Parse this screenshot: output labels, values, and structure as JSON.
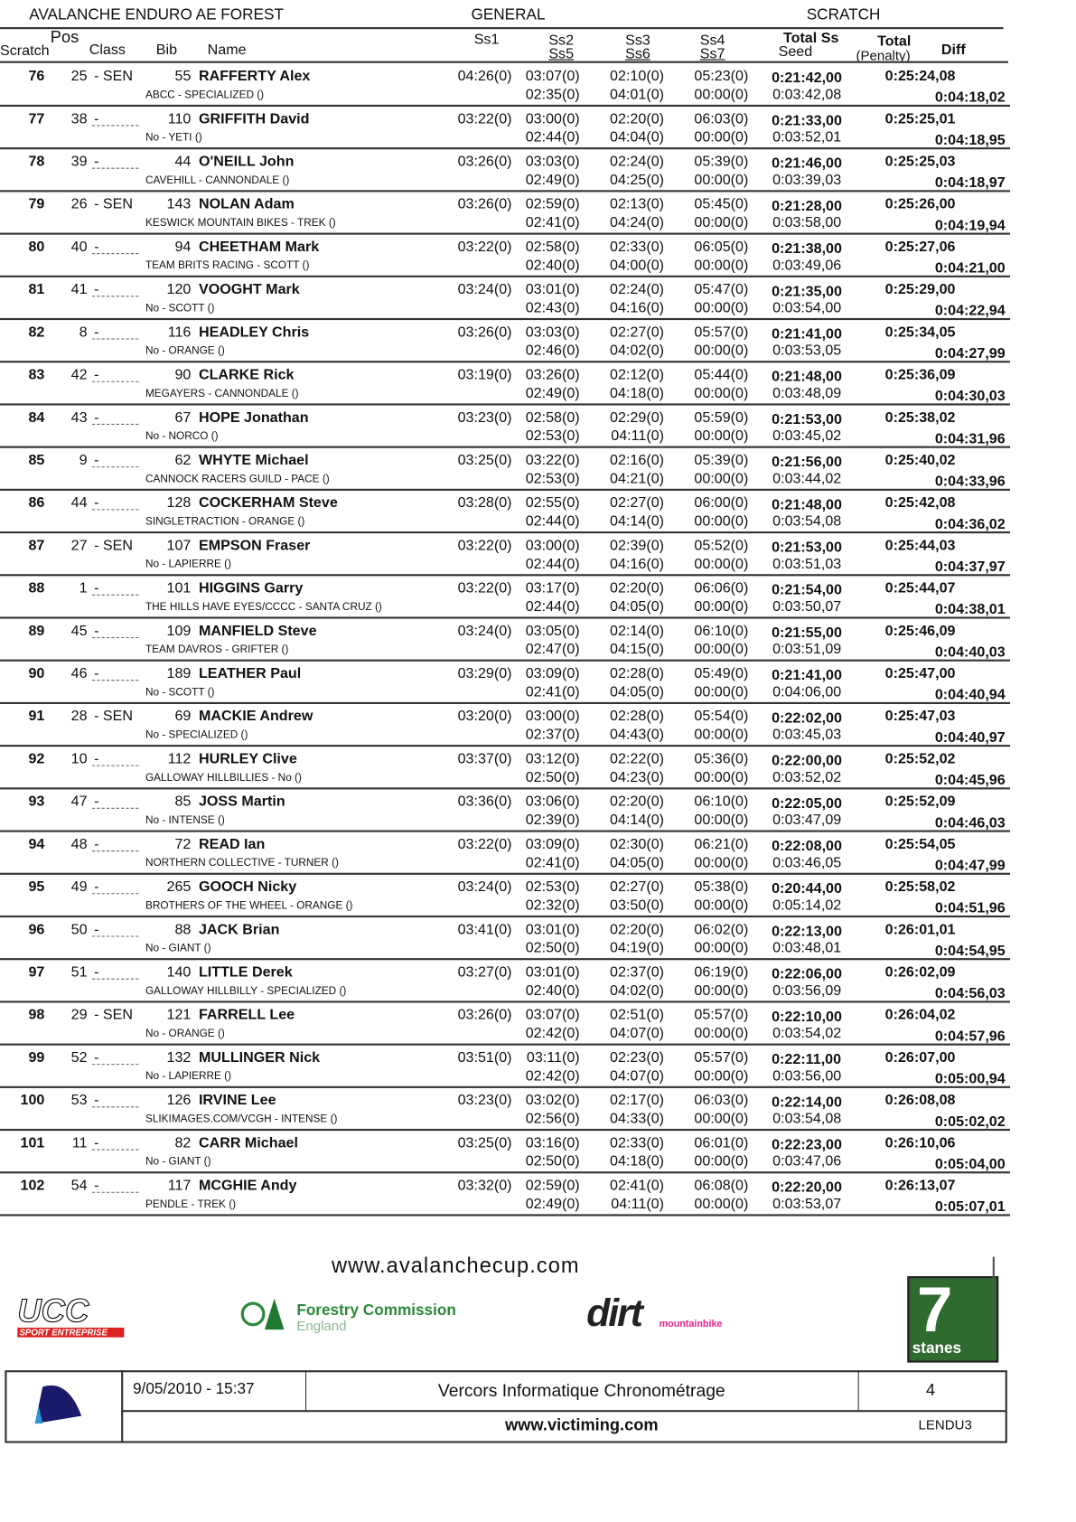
{
  "header": {
    "title": "AVALANCHE ENDURO AE FOREST",
    "general": "GENERAL",
    "scratch": "SCRATCH",
    "pos": "Pos",
    "col_scratch": "Scratch",
    "col_class": "Class",
    "col_bib": "Bib",
    "col_name": "Name",
    "col_ss1": "Ss1",
    "col_ss2": "Ss2",
    "col_ss5": "Ss5",
    "col_ss3": "Ss3",
    "col_ss6": "Ss6",
    "col_ss4": "Ss4",
    "col_ss7": "Ss7",
    "col_total_ss": "Total Ss",
    "col_seed": "Seed",
    "col_total": "Total",
    "col_penalty": "(Penalty)",
    "col_diff": "Diff"
  },
  "rows": [
    {
      "pos": "76",
      "cls": "25",
      "cat": "- SEN",
      "bib": "55",
      "name": "RAFFERTY Alex",
      "team": "ABCC - SPECIALIZED ()",
      "ss1": "04:26(0)",
      "ss2": "03:07(0)",
      "ss3": "02:10(0)",
      "ss4": "05:23(0)",
      "total_ss": "0:21:42,00",
      "ss5": "02:35(0)",
      "ss6": "04:01(0)",
      "ss7": "00:00(0)",
      "seed": "0:03:42,08",
      "total": "0:25:24,08",
      "diff": "0:04:18,02"
    },
    {
      "pos": "77",
      "cls": "38",
      "cat": "-",
      "bib": "110",
      "name": "GRIFFITH David",
      "team": "No - YETI ()",
      "ss1": "03:22(0)",
      "ss2": "03:00(0)",
      "ss3": "02:20(0)",
      "ss4": "06:03(0)",
      "total_ss": "0:21:33,00",
      "ss5": "02:44(0)",
      "ss6": "04:04(0)",
      "ss7": "00:00(0)",
      "seed": "0:03:52,01",
      "total": "0:25:25,01",
      "diff": "0:04:18,95"
    },
    {
      "pos": "78",
      "cls": "39",
      "cat": "-",
      "bib": "44",
      "name": "O'NEILL John",
      "team": "CAVEHILL - CANNONDALE ()",
      "ss1": "03:26(0)",
      "ss2": "03:03(0)",
      "ss3": "02:24(0)",
      "ss4": "05:39(0)",
      "total_ss": "0:21:46,00",
      "ss5": "02:49(0)",
      "ss6": "04:25(0)",
      "ss7": "00:00(0)",
      "seed": "0:03:39,03",
      "total": "0:25:25,03",
      "diff": "0:04:18,97"
    },
    {
      "pos": "79",
      "cls": "26",
      "cat": "- SEN",
      "bib": "143",
      "name": "NOLAN Adam",
      "team": "KESWICK MOUNTAIN BIKES - TREK ()",
      "ss1": "03:26(0)",
      "ss2": "02:59(0)",
      "ss3": "02:13(0)",
      "ss4": "05:45(0)",
      "total_ss": "0:21:28,00",
      "ss5": "02:41(0)",
      "ss6": "04:24(0)",
      "ss7": "00:00(0)",
      "seed": "0:03:58,00",
      "total": "0:25:26,00",
      "diff": "0:04:19,94"
    },
    {
      "pos": "80",
      "cls": "40",
      "cat": "-",
      "bib": "94",
      "name": "CHEETHAM Mark",
      "team": "TEAM BRITS RACING - SCOTT ()",
      "ss1": "03:22(0)",
      "ss2": "02:58(0)",
      "ss3": "02:33(0)",
      "ss4": "06:05(0)",
      "total_ss": "0:21:38,00",
      "ss5": "02:40(0)",
      "ss6": "04:00(0)",
      "ss7": "00:00(0)",
      "seed": "0:03:49,06",
      "total": "0:25:27,06",
      "diff": "0:04:21,00"
    },
    {
      "pos": "81",
      "cls": "41",
      "cat": "-",
      "bib": "120",
      "name": "VOOGHT Mark",
      "team": "No - SCOTT ()",
      "ss1": "03:24(0)",
      "ss2": "03:01(0)",
      "ss3": "02:24(0)",
      "ss4": "05:47(0)",
      "total_ss": "0:21:35,00",
      "ss5": "02:43(0)",
      "ss6": "04:16(0)",
      "ss7": "00:00(0)",
      "seed": "0:03:54,00",
      "total": "0:25:29,00",
      "diff": "0:04:22,94"
    },
    {
      "pos": "82",
      "cls": "8",
      "cat": "-",
      "bib": "116",
      "name": "HEADLEY Chris",
      "team": "No - ORANGE ()",
      "ss1": "03:26(0)",
      "ss2": "03:03(0)",
      "ss3": "02:27(0)",
      "ss4": "05:57(0)",
      "total_ss": "0:21:41,00",
      "ss5": "02:46(0)",
      "ss6": "04:02(0)",
      "ss7": "00:00(0)",
      "seed": "0:03:53,05",
      "total": "0:25:34,05",
      "diff": "0:04:27,99"
    },
    {
      "pos": "83",
      "cls": "42",
      "cat": "-",
      "bib": "90",
      "name": "CLARKE Rick",
      "team": "MEGAYERS - CANNONDALE ()",
      "ss1": "03:19(0)",
      "ss2": "03:26(0)",
      "ss3": "02:12(0)",
      "ss4": "05:44(0)",
      "total_ss": "0:21:48,00",
      "ss5": "02:49(0)",
      "ss6": "04:18(0)",
      "ss7": "00:00(0)",
      "seed": "0:03:48,09",
      "total": "0:25:36,09",
      "diff": "0:04:30,03"
    },
    {
      "pos": "84",
      "cls": "43",
      "cat": "-",
      "bib": "67",
      "name": "HOPE Jonathan",
      "team": "No - NORCO ()",
      "ss1": "03:23(0)",
      "ss2": "02:58(0)",
      "ss3": "02:29(0)",
      "ss4": "05:59(0)",
      "total_ss": "0:21:53,00",
      "ss5": "02:53(0)",
      "ss6": "04:11(0)",
      "ss7": "00:00(0)",
      "seed": "0:03:45,02",
      "total": "0:25:38,02",
      "diff": "0:04:31,96"
    },
    {
      "pos": "85",
      "cls": "9",
      "cat": "-",
      "bib": "62",
      "name": "WHYTE Michael",
      "team": "CANNOCK RACERS GUILD - PACE ()",
      "ss1": "03:25(0)",
      "ss2": "03:22(0)",
      "ss3": "02:16(0)",
      "ss4": "05:39(0)",
      "total_ss": "0:21:56,00",
      "ss5": "02:53(0)",
      "ss6": "04:21(0)",
      "ss7": "00:00(0)",
      "seed": "0:03:44,02",
      "total": "0:25:40,02",
      "diff": "0:04:33,96"
    },
    {
      "pos": "86",
      "cls": "44",
      "cat": "-",
      "bib": "128",
      "name": "COCKERHAM Steve",
      "team": "SINGLETRACTION - ORANGE ()",
      "ss1": "03:28(0)",
      "ss2": "02:55(0)",
      "ss3": "02:27(0)",
      "ss4": "06:00(0)",
      "total_ss": "0:21:48,00",
      "ss5": "02:44(0)",
      "ss6": "04:14(0)",
      "ss7": "00:00(0)",
      "seed": "0:03:54,08",
      "total": "0:25:42,08",
      "diff": "0:04:36,02"
    },
    {
      "pos": "87",
      "cls": "27",
      "cat": "- SEN",
      "bib": "107",
      "name": "EMPSON Fraser",
      "team": "No - LAPIERRE ()",
      "ss1": "03:22(0)",
      "ss2": "03:00(0)",
      "ss3": "02:39(0)",
      "ss4": "05:52(0)",
      "total_ss": "0:21:53,00",
      "ss5": "02:44(0)",
      "ss6": "04:16(0)",
      "ss7": "00:00(0)",
      "seed": "0:03:51,03",
      "total": "0:25:44,03",
      "diff": "0:04:37,97"
    },
    {
      "pos": "88",
      "cls": "1",
      "cat": "-",
      "bib": "101",
      "name": "HIGGINS Garry",
      "team": "THE HILLS HAVE EYES/CCCC - SANTA CRUZ ()",
      "ss1": "03:22(0)",
      "ss2": "03:17(0)",
      "ss3": "02:20(0)",
      "ss4": "06:06(0)",
      "total_ss": "0:21:54,00",
      "ss5": "02:44(0)",
      "ss6": "04:05(0)",
      "ss7": "00:00(0)",
      "seed": "0:03:50,07",
      "total": "0:25:44,07",
      "diff": "0:04:38,01"
    },
    {
      "pos": "89",
      "cls": "45",
      "cat": "-",
      "bib": "109",
      "name": "MANFIELD Steve",
      "team": "TEAM DAVROS - GRIFTER ()",
      "ss1": "03:24(0)",
      "ss2": "03:05(0)",
      "ss3": "02:14(0)",
      "ss4": "06:10(0)",
      "total_ss": "0:21:55,00",
      "ss5": "02:47(0)",
      "ss6": "04:15(0)",
      "ss7": "00:00(0)",
      "seed": "0:03:51,09",
      "total": "0:25:46,09",
      "diff": "0:04:40,03"
    },
    {
      "pos": "90",
      "cls": "46",
      "cat": "-",
      "bib": "189",
      "name": "LEATHER Paul",
      "team": "No - SCOTT ()",
      "ss1": "03:29(0)",
      "ss2": "03:09(0)",
      "ss3": "02:28(0)",
      "ss4": "05:49(0)",
      "total_ss": "0:21:41,00",
      "ss5": "02:41(0)",
      "ss6": "04:05(0)",
      "ss7": "00:00(0)",
      "seed": "0:04:06,00",
      "total": "0:25:47,00",
      "diff": "0:04:40,94"
    },
    {
      "pos": "91",
      "cls": "28",
      "cat": "- SEN",
      "bib": "69",
      "name": "MACKIE Andrew",
      "team": "No - SPECIALIZED ()",
      "ss1": "03:20(0)",
      "ss2": "03:00(0)",
      "ss3": "02:28(0)",
      "ss4": "05:54(0)",
      "total_ss": "0:22:02,00",
      "ss5": "02:37(0)",
      "ss6": "04:43(0)",
      "ss7": "00:00(0)",
      "seed": "0:03:45,03",
      "total": "0:25:47,03",
      "diff": "0:04:40,97"
    },
    {
      "pos": "92",
      "cls": "10",
      "cat": "-",
      "bib": "112",
      "name": "HURLEY Clive",
      "team": "GALLOWAY HILLBILLIES - No ()",
      "ss1": "03:37(0)",
      "ss2": "03:12(0)",
      "ss3": "02:22(0)",
      "ss4": "05:36(0)",
      "total_ss": "0:22:00,00",
      "ss5": "02:50(0)",
      "ss6": "04:23(0)",
      "ss7": "00:00(0)",
      "seed": "0:03:52,02",
      "total": "0:25:52,02",
      "diff": "0:04:45,96"
    },
    {
      "pos": "93",
      "cls": "47",
      "cat": "-",
      "bib": "85",
      "name": "JOSS Martin",
      "team": "No - INTENSE ()",
      "ss1": "03:36(0)",
      "ss2": "03:06(0)",
      "ss3": "02:20(0)",
      "ss4": "06:10(0)",
      "total_ss": "0:22:05,00",
      "ss5": "02:39(0)",
      "ss6": "04:14(0)",
      "ss7": "00:00(0)",
      "seed": "0:03:47,09",
      "total": "0:25:52,09",
      "diff": "0:04:46,03"
    },
    {
      "pos": "94",
      "cls": "48",
      "cat": "-",
      "bib": "72",
      "name": "READ Ian",
      "team": "NORTHERN COLLECTIVE - TURNER ()",
      "ss1": "03:22(0)",
      "ss2": "03:09(0)",
      "ss3": "02:30(0)",
      "ss4": "06:21(0)",
      "total_ss": "0:22:08,00",
      "ss5": "02:41(0)",
      "ss6": "04:05(0)",
      "ss7": "00:00(0)",
      "seed": "0:03:46,05",
      "total": "0:25:54,05",
      "diff": "0:04:47,99"
    },
    {
      "pos": "95",
      "cls": "49",
      "cat": "-",
      "bib": "265",
      "name": "GOOCH Nicky",
      "team": "BROTHERS OF THE WHEEL - ORANGE ()",
      "ss1": "03:24(0)",
      "ss2": "02:53(0)",
      "ss3": "02:27(0)",
      "ss4": "05:38(0)",
      "total_ss": "0:20:44,00",
      "ss5": "02:32(0)",
      "ss6": "03:50(0)",
      "ss7": "00:00(0)",
      "seed": "0:05:14,02",
      "total": "0:25:58,02",
      "diff": "0:04:51,96"
    },
    {
      "pos": "96",
      "cls": "50",
      "cat": "-",
      "bib": "88",
      "name": "JACK Brian",
      "team": "No - GIANT ()",
      "ss1": "03:41(0)",
      "ss2": "03:01(0)",
      "ss3": "02:20(0)",
      "ss4": "06:02(0)",
      "total_ss": "0:22:13,00",
      "ss5": "02:50(0)",
      "ss6": "04:19(0)",
      "ss7": "00:00(0)",
      "seed": "0:03:48,01",
      "total": "0:26:01,01",
      "diff": "0:04:54,95"
    },
    {
      "pos": "97",
      "cls": "51",
      "cat": "-",
      "bib": "140",
      "name": "LITTLE Derek",
      "team": "GALLOWAY HILLBILLY - SPECIALIZED ()",
      "ss1": "03:27(0)",
      "ss2": "03:01(0)",
      "ss3": "02:37(0)",
      "ss4": "06:19(0)",
      "total_ss": "0:22:06,00",
      "ss5": "02:40(0)",
      "ss6": "04:02(0)",
      "ss7": "00:00(0)",
      "seed": "0:03:56,09",
      "total": "0:26:02,09",
      "diff": "0:04:56,03"
    },
    {
      "pos": "98",
      "cls": "29",
      "cat": "- SEN",
      "bib": "121",
      "name": "FARRELL Lee",
      "team": "No - ORANGE ()",
      "ss1": "03:26(0)",
      "ss2": "03:07(0)",
      "ss3": "02:51(0)",
      "ss4": "05:57(0)",
      "total_ss": "0:22:10,00",
      "ss5": "02:42(0)",
      "ss6": "04:07(0)",
      "ss7": "00:00(0)",
      "seed": "0:03:54,02",
      "total": "0:26:04,02",
      "diff": "0:04:57,96"
    },
    {
      "pos": "99",
      "cls": "52",
      "cat": "-",
      "bib": "132",
      "name": "MULLINGER Nick",
      "team": "No - LAPIERRE ()",
      "ss1": "03:51(0)",
      "ss2": "03:11(0)",
      "ss3": "02:23(0)",
      "ss4": "05:57(0)",
      "total_ss": "0:22:11,00",
      "ss5": "02:42(0)",
      "ss6": "04:07(0)",
      "ss7": "00:00(0)",
      "seed": "0:03:56,00",
      "total": "0:26:07,00",
      "diff": "0:05:00,94"
    },
    {
      "pos": "100",
      "cls": "53",
      "cat": "-",
      "bib": "126",
      "name": "IRVINE Lee",
      "team": "SLIKIMAGES.COM/VCGH - INTENSE ()",
      "ss1": "03:23(0)",
      "ss2": "03:02(0)",
      "ss3": "02:17(0)",
      "ss4": "06:03(0)",
      "total_ss": "0:22:14,00",
      "ss5": "02:56(0)",
      "ss6": "04:33(0)",
      "ss7": "00:00(0)",
      "seed": "0:03:54,08",
      "total": "0:26:08,08",
      "diff": "0:05:02,02"
    },
    {
      "pos": "101",
      "cls": "11",
      "cat": "-",
      "bib": "82",
      "name": "CARR Michael",
      "team": "No - GIANT ()",
      "ss1": "03:25(0)",
      "ss2": "03:16(0)",
      "ss3": "02:33(0)",
      "ss4": "06:01(0)",
      "total_ss": "0:22:23,00",
      "ss5": "02:50(0)",
      "ss6": "04:18(0)",
      "ss7": "00:00(0)",
      "seed": "0:03:47,06",
      "total": "0:26:10,06",
      "diff": "0:05:04,00"
    },
    {
      "pos": "102",
      "cls": "54",
      "cat": "-",
      "bib": "117",
      "name": "MCGHIE Andy",
      "team": "PENDLE - TREK ()",
      "ss1": "03:32(0)",
      "ss2": "02:59(0)",
      "ss3": "02:41(0)",
      "ss4": "06:08(0)",
      "total_ss": "0:22:20,00",
      "ss5": "02:49(0)",
      "ss6": "04:11(0)",
      "ss7": "00:00(0)",
      "seed": "0:03:53,07",
      "total": "0:26:13,07",
      "diff": "0:05:07,01"
    }
  ],
  "sponsors": {
    "website": "www.avalanchecup.com",
    "logos": [
      "UCC SPORT ENTREPRISE",
      "Forestry Commission England",
      "dirt mountainbike magazine",
      "7 stanes"
    ]
  },
  "footer": {
    "datetime": "9/05/2010 - 15:37",
    "company": "Vercors Informatique Chronométrage",
    "page": "4",
    "website": "www.victiming.com",
    "code": "LENDU3",
    "logo_text": "VERCORS Informatique Chronométrage"
  }
}
